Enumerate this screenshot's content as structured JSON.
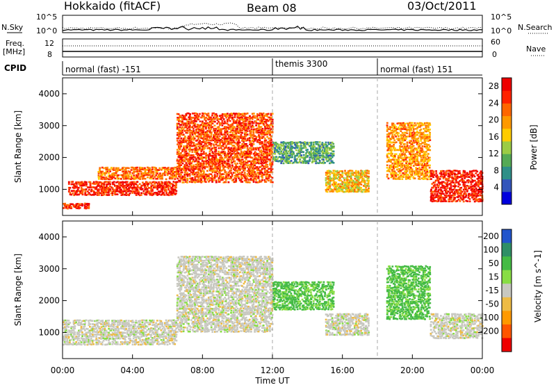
{
  "header": {
    "station": "Hokkaido (fitACF)",
    "beam": "Beam 08",
    "date": "03/Oct/2011"
  },
  "top_panels": {
    "nsky_label": "N.Sky",
    "nsearch_label": "N.Search",
    "counts_ticks": [
      "10^5",
      "10^0"
    ],
    "freq_label_1": "Freq.",
    "freq_label_2": "[MHz]",
    "freq_ticks": [
      "12",
      "8"
    ],
    "nave_label": "Nave",
    "nave_ticks": [
      "60",
      "0"
    ],
    "cpid_label": "CPID"
  },
  "cpid_segments": [
    {
      "start_hour": 0,
      "name": "normal (fast) -151"
    },
    {
      "start_hour": 12,
      "name": "themis 3300"
    },
    {
      "start_hour": 18,
      "name": "normal (fast) 151"
    }
  ],
  "chart_data": [
    {
      "type": "heatmap",
      "title": "Power",
      "xlabel": "Time UT",
      "ylabel": "Slant Range [km]",
      "xlim_hours": [
        0,
        24
      ],
      "x_ticks": [
        "00:00",
        "04:00",
        "08:00",
        "12:00",
        "16:00",
        "20:00",
        "00:00"
      ],
      "ylim_km": [
        180,
        4500
      ],
      "y_ticks": [
        1000,
        2000,
        3000,
        4000
      ],
      "colorbar": {
        "label": "Power [dB]",
        "ticks": [
          4,
          8,
          12,
          16,
          20,
          24,
          28
        ],
        "range": [
          0,
          30
        ],
        "colors": [
          "#0000dd",
          "#3355bb",
          "#2f8f88",
          "#55aa55",
          "#9ccc44",
          "#ffcc00",
          "#ff9900",
          "#ff6600",
          "#ff2200",
          "#ee0000"
        ]
      },
      "features": [
        {
          "hours": [
            0.0,
            1.5
          ],
          "range_km": [
            380,
            560
          ],
          "power_db": 26
        },
        {
          "hours": [
            0.3,
            6.5
          ],
          "range_km": [
            800,
            1250
          ],
          "power_db": 26
        },
        {
          "hours": [
            2.0,
            6.5
          ],
          "range_km": [
            1300,
            1700
          ],
          "power_db": 22
        },
        {
          "hours": [
            6.5,
            12.0
          ],
          "range_km": [
            1200,
            3400
          ],
          "power_db": 24
        },
        {
          "hours": [
            12.0,
            15.5
          ],
          "range_km": [
            1800,
            2500
          ],
          "power_db": 10
        },
        {
          "hours": [
            15.0,
            17.5
          ],
          "range_km": [
            900,
            1600
          ],
          "power_db": 18
        },
        {
          "hours": [
            18.5,
            21.0
          ],
          "range_km": [
            1300,
            3100
          ],
          "power_db": 20
        },
        {
          "hours": [
            21.0,
            24.0
          ],
          "range_km": [
            600,
            1600
          ],
          "power_db": 27
        }
      ]
    },
    {
      "type": "heatmap",
      "title": "Velocity",
      "xlabel": "Time UT",
      "ylabel": "Slant Range [km]",
      "xlim_hours": [
        0,
        24
      ],
      "x_ticks": [
        "00:00",
        "04:00",
        "08:00",
        "12:00",
        "16:00",
        "20:00",
        "00:00"
      ],
      "ylim_km": [
        180,
        4500
      ],
      "y_ticks": [
        1000,
        2000,
        3000,
        4000
      ],
      "colorbar": {
        "label": "Velocity [m s^-1]",
        "ticks": [
          200,
          100,
          50,
          15,
          -15,
          -50,
          -100,
          -200
        ],
        "colors": [
          "#2255cc",
          "#2f8f66",
          "#44bb44",
          "#88dd44",
          "#c8c8c0",
          "#eebb44",
          "#ff9900",
          "#ff5500",
          "#ee0000"
        ]
      },
      "features": [
        {
          "hours": [
            0.0,
            6.5
          ],
          "range_km": [
            600,
            1400
          ],
          "velocity_ms": 0
        },
        {
          "hours": [
            6.5,
            12.0
          ],
          "range_km": [
            1000,
            3400
          ],
          "velocity_ms": 0
        },
        {
          "hours": [
            12.0,
            15.5
          ],
          "range_km": [
            1700,
            2600
          ],
          "velocity_ms": 40
        },
        {
          "hours": [
            15.0,
            17.5
          ],
          "range_km": [
            900,
            1600
          ],
          "velocity_ms": 0
        },
        {
          "hours": [
            18.5,
            21.0
          ],
          "range_km": [
            1400,
            3100
          ],
          "velocity_ms": 40
        },
        {
          "hours": [
            21.0,
            24.0
          ],
          "range_km": [
            800,
            1600
          ],
          "velocity_ms": 0
        }
      ]
    }
  ]
}
